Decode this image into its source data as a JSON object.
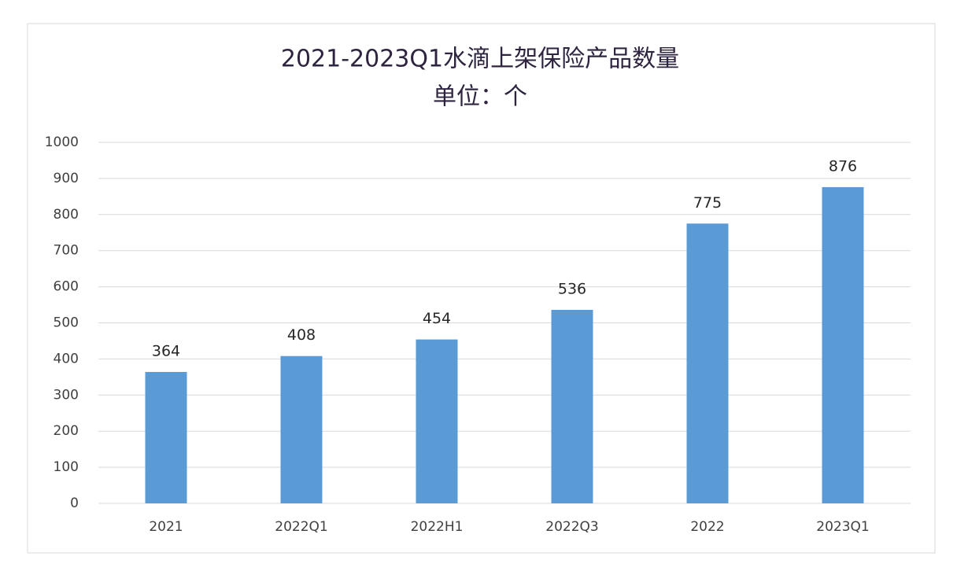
{
  "chart_data": {
    "type": "bar",
    "title": "2021-2023Q1水滴上架保险产品数量",
    "subtitle": "单位：个",
    "categories": [
      "2021",
      "2022Q1",
      "2022H1",
      "2022Q3",
      "2022",
      "2023Q1"
    ],
    "values": [
      364,
      408,
      454,
      536,
      775,
      876
    ],
    "color": "#5b9bd5",
    "ylim": [
      0,
      1000
    ],
    "yticks": [
      0,
      100,
      200,
      300,
      400,
      500,
      600,
      700,
      800,
      900,
      1000
    ],
    "grid": true
  }
}
